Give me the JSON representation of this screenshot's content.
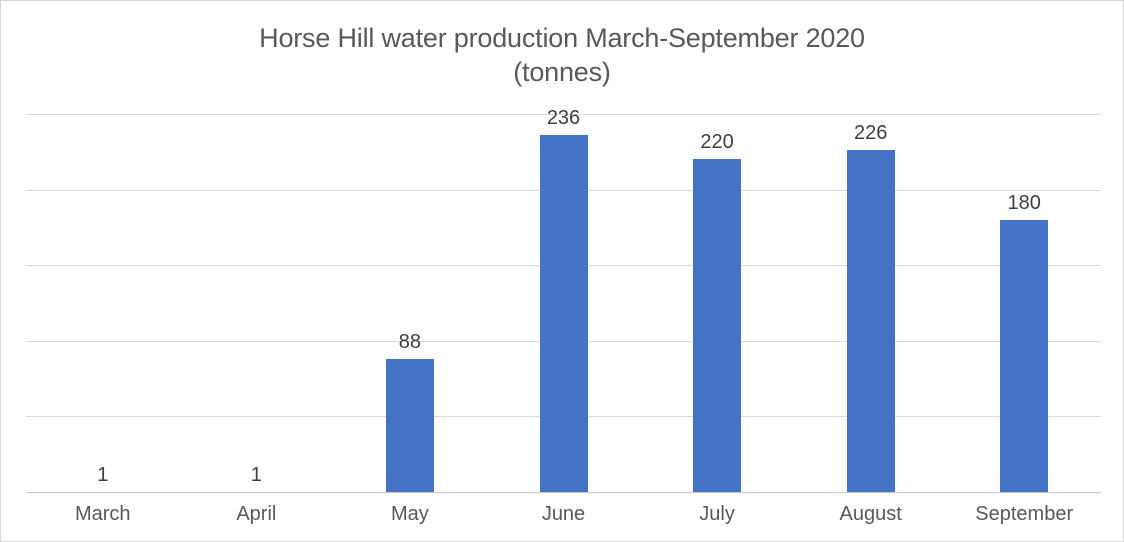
{
  "chart_data": {
    "type": "bar",
    "title": "Horse Hill water production March-September 2020",
    "subtitle": "(tonnes)",
    "categories": [
      "March",
      "April",
      "May",
      "June",
      "July",
      "August",
      "September"
    ],
    "values": [
      1,
      1,
      88,
      236,
      220,
      226,
      180
    ],
    "data_labels": [
      "1",
      "1",
      "88",
      "236",
      "220",
      "226",
      "180"
    ],
    "xlabel": "",
    "ylabel": "",
    "ylim": [
      0,
      250
    ],
    "gridline_step": 50,
    "grid": true,
    "y_axis_tick_labels_visible": false,
    "data_labels_visible": true,
    "legend_position": "none",
    "colors": {
      "bar": "#4472C4",
      "gridline": "#D9D9D9",
      "axis_line": "#C8C8C8",
      "title_text": "#595959",
      "data_label_text": "#404040",
      "axis_label_text": "#595959",
      "background": "#FFFFFF",
      "frame_border": "#D6D6D6"
    }
  }
}
